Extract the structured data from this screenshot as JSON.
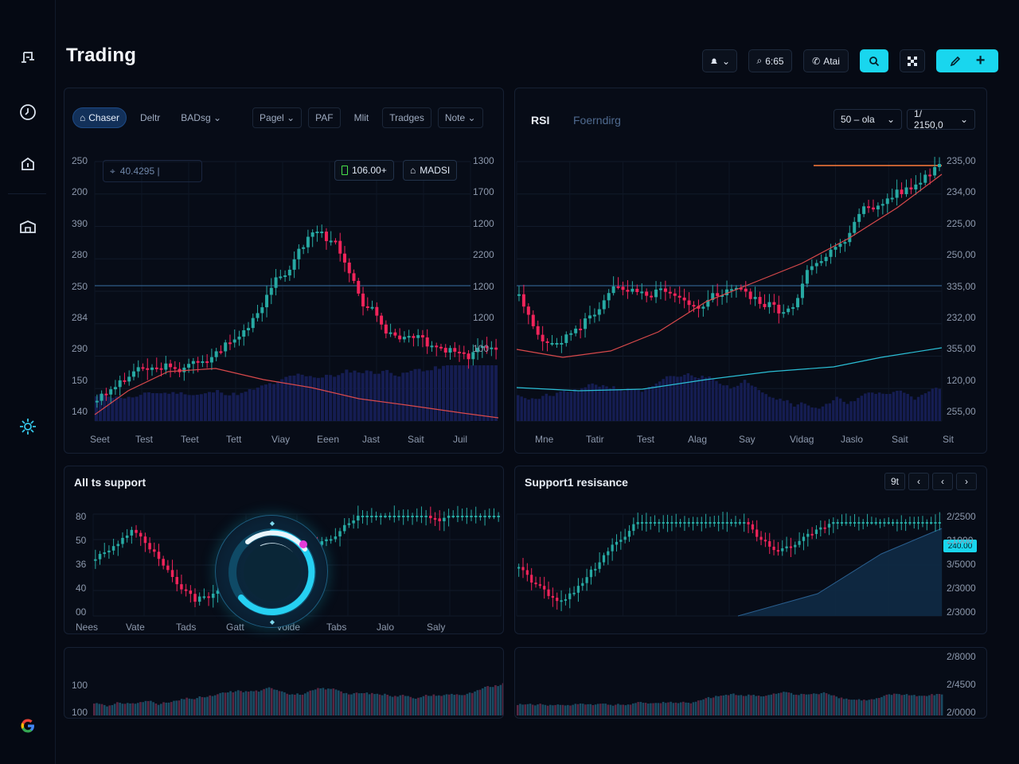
{
  "app": {
    "title": "Trading"
  },
  "sidebar": {
    "icons": [
      "music-note-icon",
      "clock-icon",
      "home-icon",
      "building-icon",
      "settings-gear-icon",
      "google-logo-icon"
    ]
  },
  "toolbar": {
    "btn1": "",
    "btn2": "6:65",
    "btn3": "Atai",
    "btn4_icon": "search-icon",
    "btn5_icon": "grid-icon",
    "btn6_icon": "brush-icon",
    "btn6_plus": "+"
  },
  "main_chart": {
    "tabs": [
      {
        "label": "Chaser",
        "active": true
      },
      {
        "label": "Deltr"
      },
      {
        "label": "BADsg"
      },
      {
        "label": "Pagel"
      },
      {
        "label": "PAF"
      },
      {
        "label": "Mlit"
      },
      {
        "label": "Tradges"
      },
      {
        "label": "Note"
      }
    ],
    "search_value": "40.4295 |",
    "chip_value": "106.00+",
    "chip_indicator": "MADSI",
    "left_axis": [
      "250",
      "200",
      "390",
      "280",
      "250",
      "284",
      "290",
      "150",
      "140"
    ],
    "right_axis": [
      "1300",
      "1700",
      "1200",
      "2200",
      "1200",
      "1200",
      "100"
    ],
    "x_labels": [
      "Seet",
      "Test",
      "Teet",
      "Tett",
      "Viay",
      "Eeen",
      "Jast",
      "Sait",
      "Juil"
    ]
  },
  "rsi_chart": {
    "title": "RSI",
    "subtitle": "Foerndirg",
    "select1": "50 – ola",
    "select2": "1/ 2150,0",
    "right_axis": [
      "235,00",
      "234,00",
      "225,00",
      "250,00",
      "335,00",
      "232,00",
      "355,00",
      "120,00",
      "255,00"
    ],
    "x_labels": [
      "Mne",
      "Tatir",
      "Test",
      "Alag",
      "Say",
      "Vidag",
      "Jaslo",
      "Sait",
      "Sit"
    ]
  },
  "support_chart": {
    "title": "All ts support",
    "left_axis": [
      "80",
      "50",
      "36",
      "40",
      "00"
    ],
    "x_labels": [
      "Nees",
      "Vate",
      "Tads",
      "Gatt",
      "Voide",
      "Tabs",
      "Jalo",
      "Saly"
    ]
  },
  "resistance_chart": {
    "title": "Support1 resisance",
    "nav": [
      "9t",
      "‹",
      "‹",
      "›"
    ],
    "price_tag": "240.00",
    "right_axis": [
      "2/2500",
      "21000",
      "3/5000",
      "2/3000",
      "2/3000"
    ]
  },
  "volume_left": {
    "left_axis": [
      "100",
      "100"
    ]
  },
  "volume_right": {
    "right_axis": [
      "2/8000",
      "2/4500",
      "2/0000"
    ]
  },
  "colors": {
    "bull": "#27a9a3",
    "bear": "#f0245a",
    "accent": "#19d6ee",
    "ma": "#e0504c",
    "bg": "#060a14"
  }
}
